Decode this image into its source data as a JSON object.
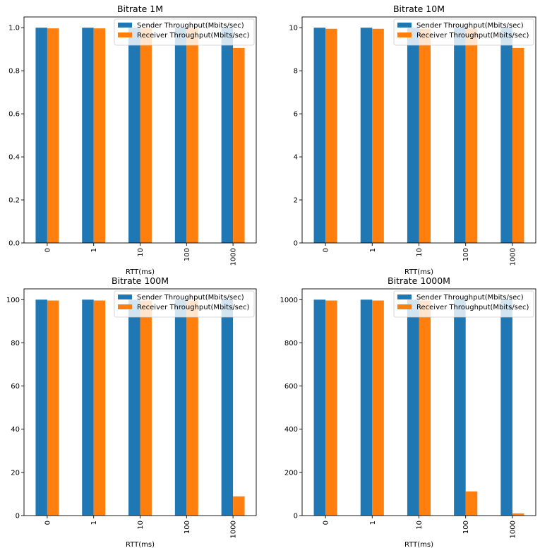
{
  "chart_data": [
    {
      "type": "bar",
      "title": "Bitrate 1M",
      "xlabel": "RTT(ms)",
      "ylabel": "",
      "categories": [
        "0",
        "1",
        "10",
        "100",
        "1000"
      ],
      "series": [
        {
          "name": "Sender Throughput(Mbits/sec)",
          "values": [
            1.0,
            1.0,
            1.0,
            1.0,
            1.0
          ]
        },
        {
          "name": "Receiver Throughput(Mbits/sec)",
          "values": [
            0.997,
            0.997,
            0.997,
            0.997,
            0.906
          ]
        }
      ],
      "ylim": [
        0,
        1.05
      ],
      "yticks": [
        "0.0",
        "0.2",
        "0.4",
        "0.6",
        "0.8",
        "1.0"
      ],
      "ytick_values": [
        0,
        0.2,
        0.4,
        0.6,
        0.8,
        1.0
      ],
      "legend": "upper right",
      "grid": false
    },
    {
      "type": "bar",
      "title": "Bitrate 10M",
      "xlabel": "RTT(ms)",
      "ylabel": "",
      "categories": [
        "0",
        "1",
        "10",
        "100",
        "1000"
      ],
      "series": [
        {
          "name": "Sender Throughput(Mbits/sec)",
          "values": [
            10.0,
            10.0,
            10.0,
            10.0,
            10.0
          ]
        },
        {
          "name": "Receiver Throughput(Mbits/sec)",
          "values": [
            9.95,
            9.95,
            9.95,
            9.95,
            9.06
          ]
        }
      ],
      "ylim": [
        0,
        10.5
      ],
      "yticks": [
        "0",
        "2",
        "4",
        "6",
        "8",
        "10"
      ],
      "ytick_values": [
        0,
        2,
        4,
        6,
        8,
        10
      ],
      "legend": "upper right",
      "grid": false
    },
    {
      "type": "bar",
      "title": "Bitrate 100M",
      "xlabel": "RTT(ms)",
      "ylabel": "",
      "categories": [
        "0",
        "1",
        "10",
        "100",
        "1000"
      ],
      "series": [
        {
          "name": "Sender Throughput(Mbits/sec)",
          "values": [
            100.0,
            100.0,
            100.0,
            100.0,
            100.0
          ]
        },
        {
          "name": "Receiver Throughput(Mbits/sec)",
          "values": [
            99.6,
            99.6,
            99.6,
            99.6,
            8.9
          ]
        }
      ],
      "ylim": [
        0,
        105
      ],
      "yticks": [
        "0",
        "20",
        "40",
        "60",
        "80",
        "100"
      ],
      "ytick_values": [
        0,
        20,
        40,
        60,
        80,
        100
      ],
      "legend": "upper right",
      "grid": false
    },
    {
      "type": "bar",
      "title": "Bitrate 1000M",
      "xlabel": "RTT(ms)",
      "ylabel": "",
      "categories": [
        "0",
        "1",
        "10",
        "100",
        "1000"
      ],
      "series": [
        {
          "name": "Sender Throughput(Mbits/sec)",
          "values": [
            1000,
            1000,
            1000,
            1000,
            1000
          ]
        },
        {
          "name": "Receiver Throughput(Mbits/sec)",
          "values": [
            996,
            996,
            996,
            112,
            10
          ]
        }
      ],
      "ylim": [
        0,
        1050
      ],
      "yticks": [
        "0",
        "200",
        "400",
        "600",
        "800",
        "1000"
      ],
      "ytick_values": [
        0,
        200,
        400,
        600,
        800,
        1000
      ],
      "legend": "upper right",
      "grid": false
    }
  ],
  "colors": {
    "sender": "#1f77b4",
    "receiver": "#ff7f0e",
    "axis": "#000000",
    "legend_border": "#cccccc"
  }
}
